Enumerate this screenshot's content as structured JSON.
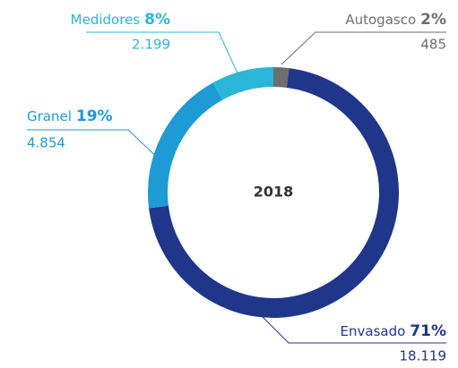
{
  "chart_data": {
    "type": "donut",
    "center_label": "2018",
    "categories": [
      "Autogasco",
      "Envasado",
      "Granel",
      "Medidores"
    ],
    "values": [
      2,
      71,
      19,
      8
    ],
    "value_labels": [
      "2%",
      "71%",
      "19%",
      "8%"
    ],
    "counts": [
      485,
      18119,
      4854,
      2199
    ],
    "count_labels": [
      "485",
      "18.119",
      "4.854",
      "2.199"
    ],
    "colors": [
      "#6d6e70",
      "#20368b",
      "#1e9ad6",
      "#29b6d9"
    ]
  }
}
